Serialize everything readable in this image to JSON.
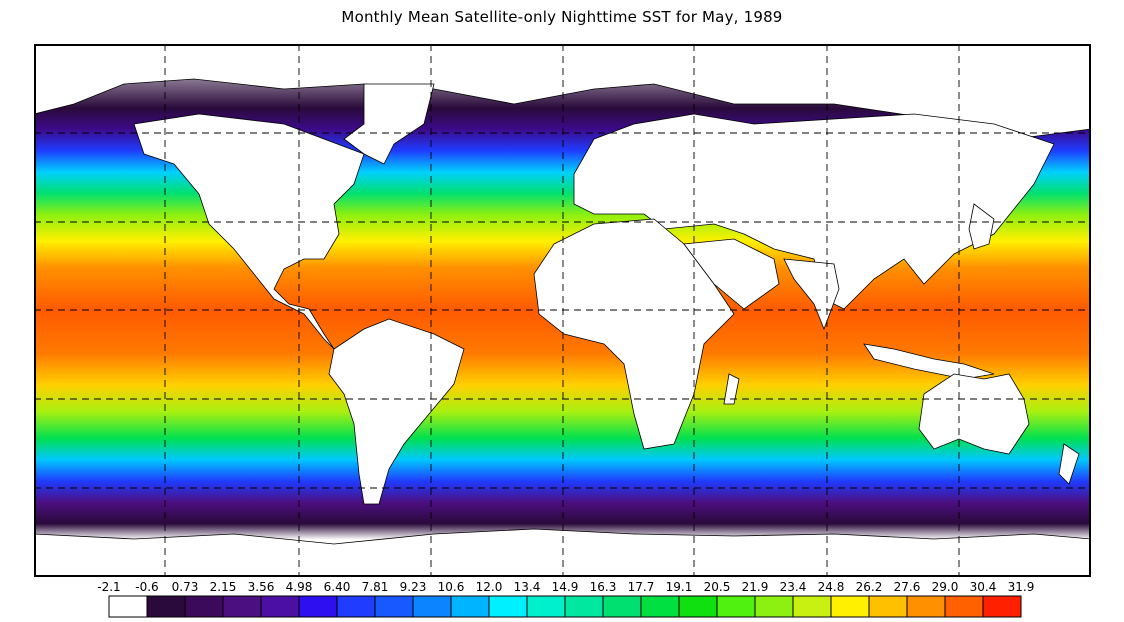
{
  "title": "Monthly Mean Satellite-only Nighttime SST for May, 1989",
  "colorbar": {
    "labels": [
      "-2.1",
      "-0.6",
      "0.73",
      "2.15",
      "3.56",
      "4.98",
      "6.40",
      "7.81",
      "9.23",
      "10.6",
      "12.0",
      "13.4",
      "14.9",
      "16.3",
      "17.7",
      "19.1",
      "20.5",
      "21.9",
      "23.4",
      "24.8",
      "26.2",
      "27.6",
      "29.0",
      "30.4",
      "31.9"
    ],
    "colors": [
      "#ffffff",
      "#2a0a3a",
      "#3c0a5a",
      "#4b0f80",
      "#4c0fa3",
      "#2e0ff0",
      "#1f3cff",
      "#1858ff",
      "#0d84ff",
      "#00b4ff",
      "#00f0ff",
      "#00f0cc",
      "#00e8a0",
      "#00e070",
      "#00e040",
      "#10e010",
      "#50f010",
      "#8cf010",
      "#c8f010",
      "#fff000",
      "#ffc000",
      "#ff9000",
      "#ff6000",
      "#ff2000"
    ]
  },
  "map": {
    "projection": "equirectangular",
    "extent": {
      "lon": [
        -180,
        180
      ],
      "lat": [
        -90,
        90
      ]
    },
    "graticule_dashed": true,
    "land_color": "#ffffff"
  }
}
